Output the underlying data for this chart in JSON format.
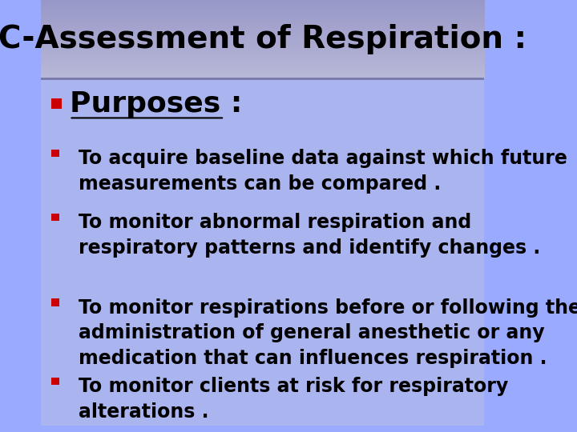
{
  "title": "C-Assessment of Respiration :",
  "title_bg_top": "#c8c8e8",
  "title_bg_bottom": "#9898c8",
  "body_bg": "#99aaff",
  "body_bg_light": "#aabbff",
  "section_header": "Purposes :",
  "bullet_color": "#cc0000",
  "text_color": "#000000",
  "bullets": [
    "To acquire baseline data against which future\nmeasurements can be compared .",
    "To monitor abnormal respiration and\nrespiratory patterns and identify changes .",
    "To monitor respirations before or following the\nadministration of general anesthetic or any\nmedication that can influences respiration .",
    "To monitor clients at risk for respiratory\nalterations ."
  ],
  "title_fontsize": 28,
  "header_fontsize": 26,
  "bullet_fontsize": 17
}
